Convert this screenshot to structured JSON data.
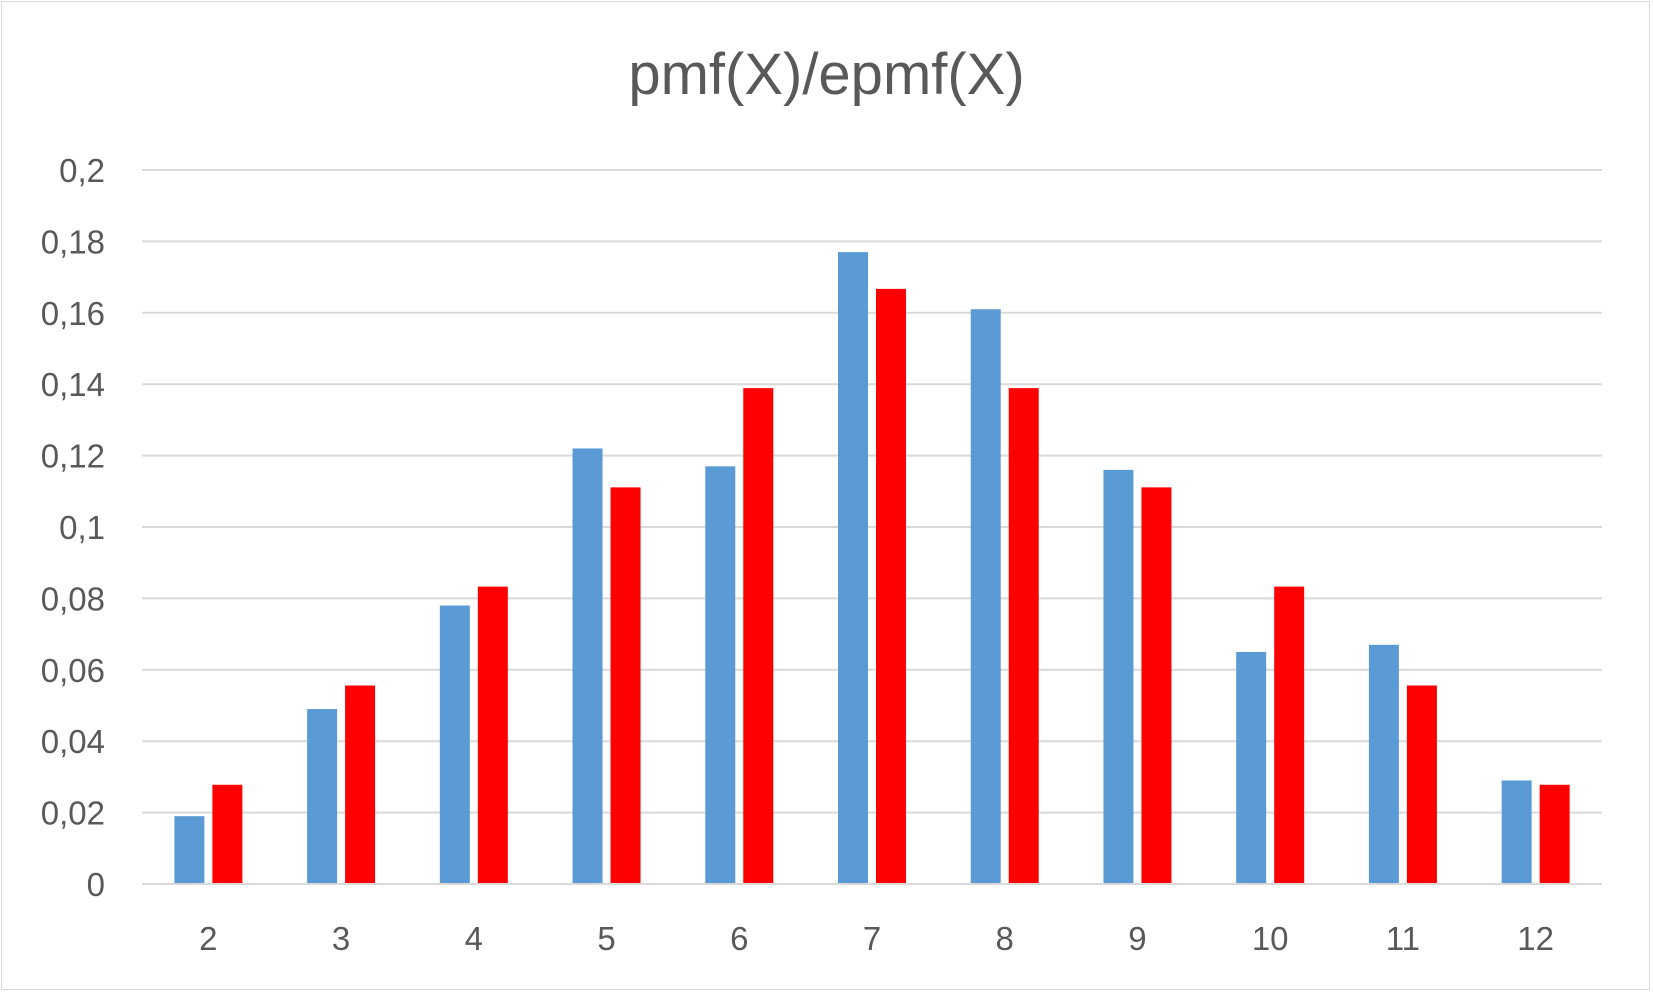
{
  "chart_data": {
    "type": "bar",
    "title": "pmf(X)/epmf(X)",
    "xlabel": "",
    "ylabel": "",
    "categories": [
      "2",
      "3",
      "4",
      "5",
      "6",
      "7",
      "8",
      "9",
      "10",
      "11",
      "12"
    ],
    "series": [
      {
        "color": "#5b9bd5",
        "values": [
          0.019,
          0.049,
          0.078,
          0.122,
          0.117,
          0.177,
          0.161,
          0.116,
          0.065,
          0.067,
          0.029
        ]
      },
      {
        "color": "#ff0000",
        "values": [
          0.0278,
          0.0556,
          0.0833,
          0.1111,
          0.1389,
          0.1667,
          0.1389,
          0.1111,
          0.0833,
          0.0556,
          0.0278
        ]
      }
    ],
    "ylim": [
      0,
      0.2
    ],
    "yticks": [
      0,
      0.02,
      0.04,
      0.06,
      0.08,
      0.1,
      0.12,
      0.14,
      0.16,
      0.18,
      0.2
    ],
    "ytick_labels": [
      "0",
      "0,02",
      "0,04",
      "0,06",
      "0,08",
      "0,1",
      "0,12",
      "0,14",
      "0,16",
      "0,18",
      "0,2"
    ],
    "grid": true,
    "legend": "none"
  }
}
